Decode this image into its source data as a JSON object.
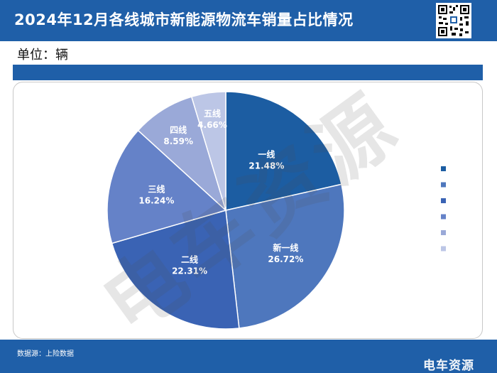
{
  "header": {
    "title": "2024年12月各线城市新能源物流车销量占比情况"
  },
  "unit_label": "单位：辆",
  "footer": {
    "source": "数据源：上险数据",
    "brand": "电车资源"
  },
  "watermark": "电车资源",
  "colors": {
    "header_bg": "#1f5fa8",
    "slices": [
      "#1c5da2",
      "#4e77bd",
      "#3a63b4",
      "#6582c8",
      "#9aa9d8",
      "#bcc6e6"
    ]
  },
  "chart_data": {
    "type": "pie",
    "title": "",
    "slices": [
      {
        "name": "一线",
        "value": 21.48,
        "label": "21.48%"
      },
      {
        "name": "新一线",
        "value": 26.72,
        "label": "26.72%"
      },
      {
        "name": "二线",
        "value": 22.31,
        "label": "22.31%"
      },
      {
        "name": "三线",
        "value": 16.24,
        "label": "16.24%"
      },
      {
        "name": "四线",
        "value": 8.59,
        "label": "8.59%"
      },
      {
        "name": "五线",
        "value": 4.66,
        "label": "4.66%"
      }
    ],
    "legend": {
      "position": "right",
      "show_text": false
    }
  }
}
